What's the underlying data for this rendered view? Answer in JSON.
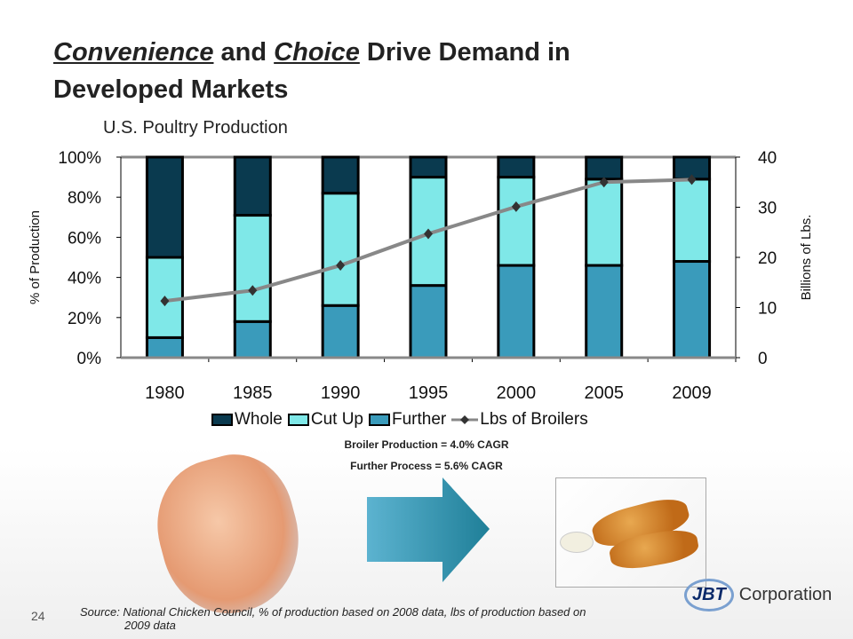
{
  "title": {
    "word1": "Convenience",
    "mid": " and ",
    "word2": "Choice",
    "rest": " Drive Demand in",
    "line2": "Developed Markets"
  },
  "chart_data": {
    "type": "bar",
    "title": "U.S. Poultry Production",
    "stacked": true,
    "categories": [
      "1980",
      "1985",
      "1990",
      "1995",
      "2000",
      "2005",
      "2009"
    ],
    "series": [
      {
        "name": "Further",
        "axis": "left",
        "color": "#3a9bbb",
        "values": [
          10,
          18,
          26,
          36,
          46,
          46,
          48
        ]
      },
      {
        "name": "Cut Up",
        "axis": "left",
        "color": "#7fe8e8",
        "values": [
          40,
          53,
          56,
          54,
          44,
          43,
          41
        ]
      },
      {
        "name": "Whole",
        "axis": "left",
        "color": "#0a3a4f",
        "values": [
          50,
          29,
          18,
          10,
          10,
          11,
          11
        ]
      },
      {
        "name": "Lbs of Broilers",
        "axis": "right",
        "type": "line",
        "color": "#888888",
        "values": [
          11.3,
          13.4,
          18.4,
          24.7,
          30.1,
          35.0,
          35.5
        ]
      }
    ],
    "ylabel": "% of Production",
    "ylabel_right": "Billions of Lbs.",
    "ylim": [
      0,
      100
    ],
    "ylim_right": [
      0,
      40
    ],
    "yticks": [
      "0%",
      "20%",
      "40%",
      "60%",
      "80%",
      "100%"
    ],
    "yticks_right": [
      "0",
      "10",
      "20",
      "30",
      "40"
    ],
    "legend_order": [
      "Whole",
      "Cut Up",
      "Further",
      "Lbs of Broilers"
    ],
    "legend": "bottom"
  },
  "notes": [
    "Broiler Production = 4.0% CAGR",
    "Further Process = 5.6% CAGR"
  ],
  "page_number": "24",
  "source": {
    "line1": "Source: National Chicken Council, % of production based on 2008 data, lbs of production based on",
    "line2": "2009 data"
  },
  "logo": {
    "mark": "JBT",
    "text": "Corporation"
  }
}
